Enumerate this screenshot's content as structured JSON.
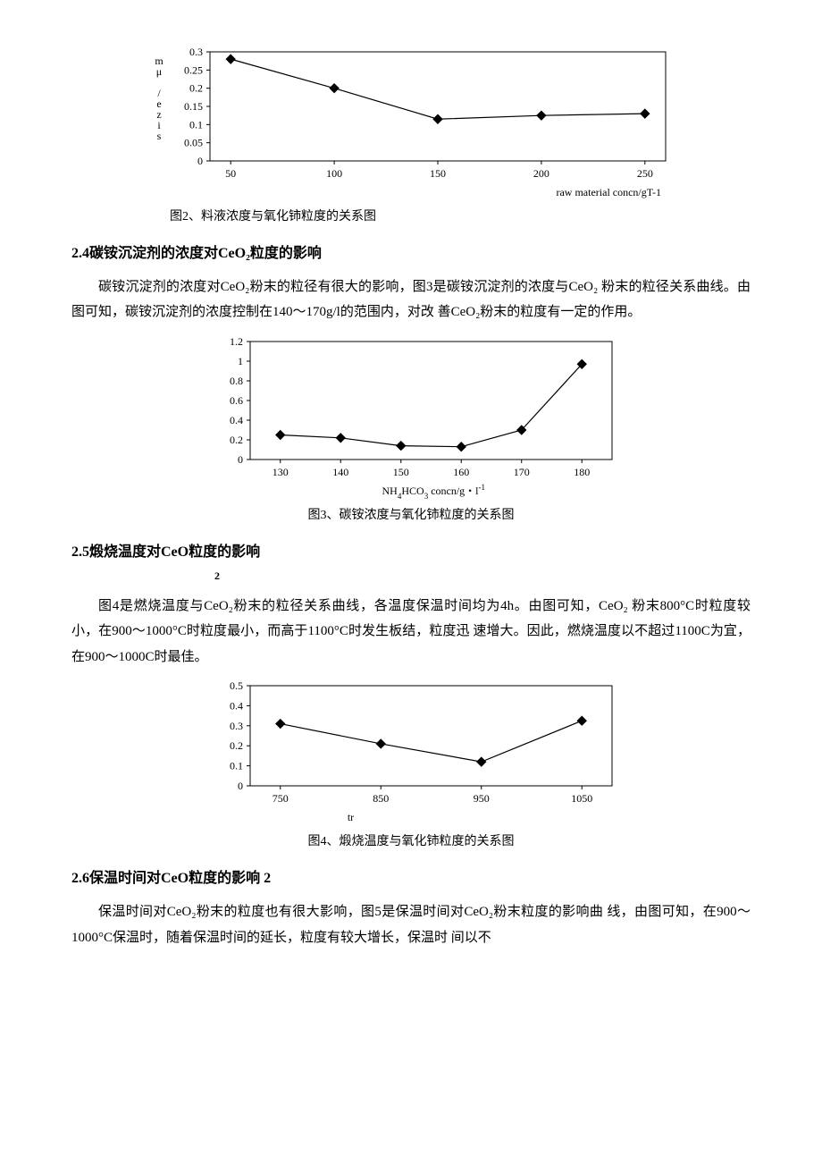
{
  "chart2": {
    "type": "line",
    "x": [
      50,
      100,
      150,
      200,
      250
    ],
    "y": [
      0.28,
      0.2,
      0.115,
      0.125,
      0.13
    ],
    "yticks": [
      0,
      0.05,
      0.1,
      0.15,
      0.2,
      0.25,
      0.3
    ],
    "ytick_labels": [
      "0",
      "0.05",
      "0.1",
      "0.15",
      "0.2",
      "0.25",
      "0.3"
    ],
    "xticks": [
      50,
      100,
      150,
      200,
      250
    ],
    "xtick_labels": [
      "50",
      "100",
      "150",
      "200",
      "250"
    ],
    "ylabel_vertical": [
      "m",
      "μ",
      "",
      "/",
      "e",
      "z",
      "i",
      "s"
    ],
    "xlabel": "raw material concn/gT-1",
    "xlim": [
      40,
      260
    ],
    "ylim": [
      0,
      0.3
    ],
    "line_color": "#000000",
    "marker": "diamond",
    "marker_size": 5,
    "background": "#ffffff",
    "caption": "图2、料液浓度与氧化铈粒度的关系图"
  },
  "section24": {
    "heading": "2.4碳铵沉淀剂的浓度对CeO₂粒度的影响",
    "para": "碳铵沉淀剂的浓度对CeO₂粉末的粒径有很大的影响，图3是碳铵沉淀剂的浓度与CeO₂  粉末的粒径关系曲线。由图可知，碳铵沉淀剂的浓度控制在140～170g/l的范围内，对改  善CeO₂粉末的粒度有一定的作用。"
  },
  "chart3": {
    "type": "line",
    "x": [
      130,
      140,
      150,
      160,
      170,
      180
    ],
    "y": [
      0.25,
      0.22,
      0.14,
      0.13,
      0.3,
      0.97
    ],
    "yticks": [
      0,
      0.2,
      0.4,
      0.6,
      0.8,
      1,
      1.2
    ],
    "ytick_labels": [
      "0",
      "0.2",
      "0.4",
      "0.6",
      "0.8",
      "1",
      "1.2"
    ],
    "xticks": [
      130,
      140,
      150,
      160,
      170,
      180
    ],
    "xtick_labels": [
      "130",
      "140",
      "150",
      "160",
      "170",
      "180"
    ],
    "xlabel_parts": [
      "NH",
      "4",
      "HCO",
      "3",
      " concn/g・l",
      "-1"
    ],
    "xlim": [
      125,
      185
    ],
    "ylim": [
      0,
      1.2
    ],
    "line_color": "#000000",
    "marker": "diamond",
    "marker_size": 5,
    "background": "#ffffff",
    "caption": "图3、碳铵浓度与氧化铈粒度的关系图"
  },
  "section25": {
    "heading": "2.5煅烧温度对CeO粒度的影响",
    "heading_sub": "2",
    "para": "图4是燃烧温度与CeO₂粉末的粒径关系曲线，各温度保温时间均为4h。由图可知，CeO₂  粉末800°C时粒度较小，在900～1000°C时粒度最小，而高于1100°C时发生板结，粒度迅  速增大。因此，燃烧温度以不超过1100C为宜，在900～1000C时最佳。"
  },
  "chart4": {
    "type": "line",
    "x": [
      750,
      850,
      950,
      1050
    ],
    "y": [
      0.31,
      0.21,
      0.12,
      0.325
    ],
    "yticks": [
      0,
      0.1,
      0.2,
      0.3,
      0.4,
      0.5
    ],
    "ytick_labels": [
      "0",
      "0.1",
      "0.2",
      "0.3",
      "0.4",
      "0.5"
    ],
    "xticks": [
      750,
      850,
      950,
      1050
    ],
    "xtick_labels": [
      "750",
      "850",
      "950",
      "1050"
    ],
    "xlabel": "tr",
    "xlim": [
      720,
      1080
    ],
    "ylim": [
      0,
      0.5
    ],
    "line_color": "#000000",
    "marker": "diamond",
    "marker_size": 5,
    "background": "#ffffff",
    "caption": "图4、煅烧温度与氧化铈粒度的关系图"
  },
  "section26": {
    "heading": "2.6保温时间对CeO粒度的影响 2",
    "para": "保温时间对CeO₂粉末的粒度也有很大影响，图5是保温时间对CeO₂粉末粒度的影响曲  线，由图可知，在900～1000°C保温时，随着保温时间的延长，粒度有较大增长，保温时  间以不"
  }
}
